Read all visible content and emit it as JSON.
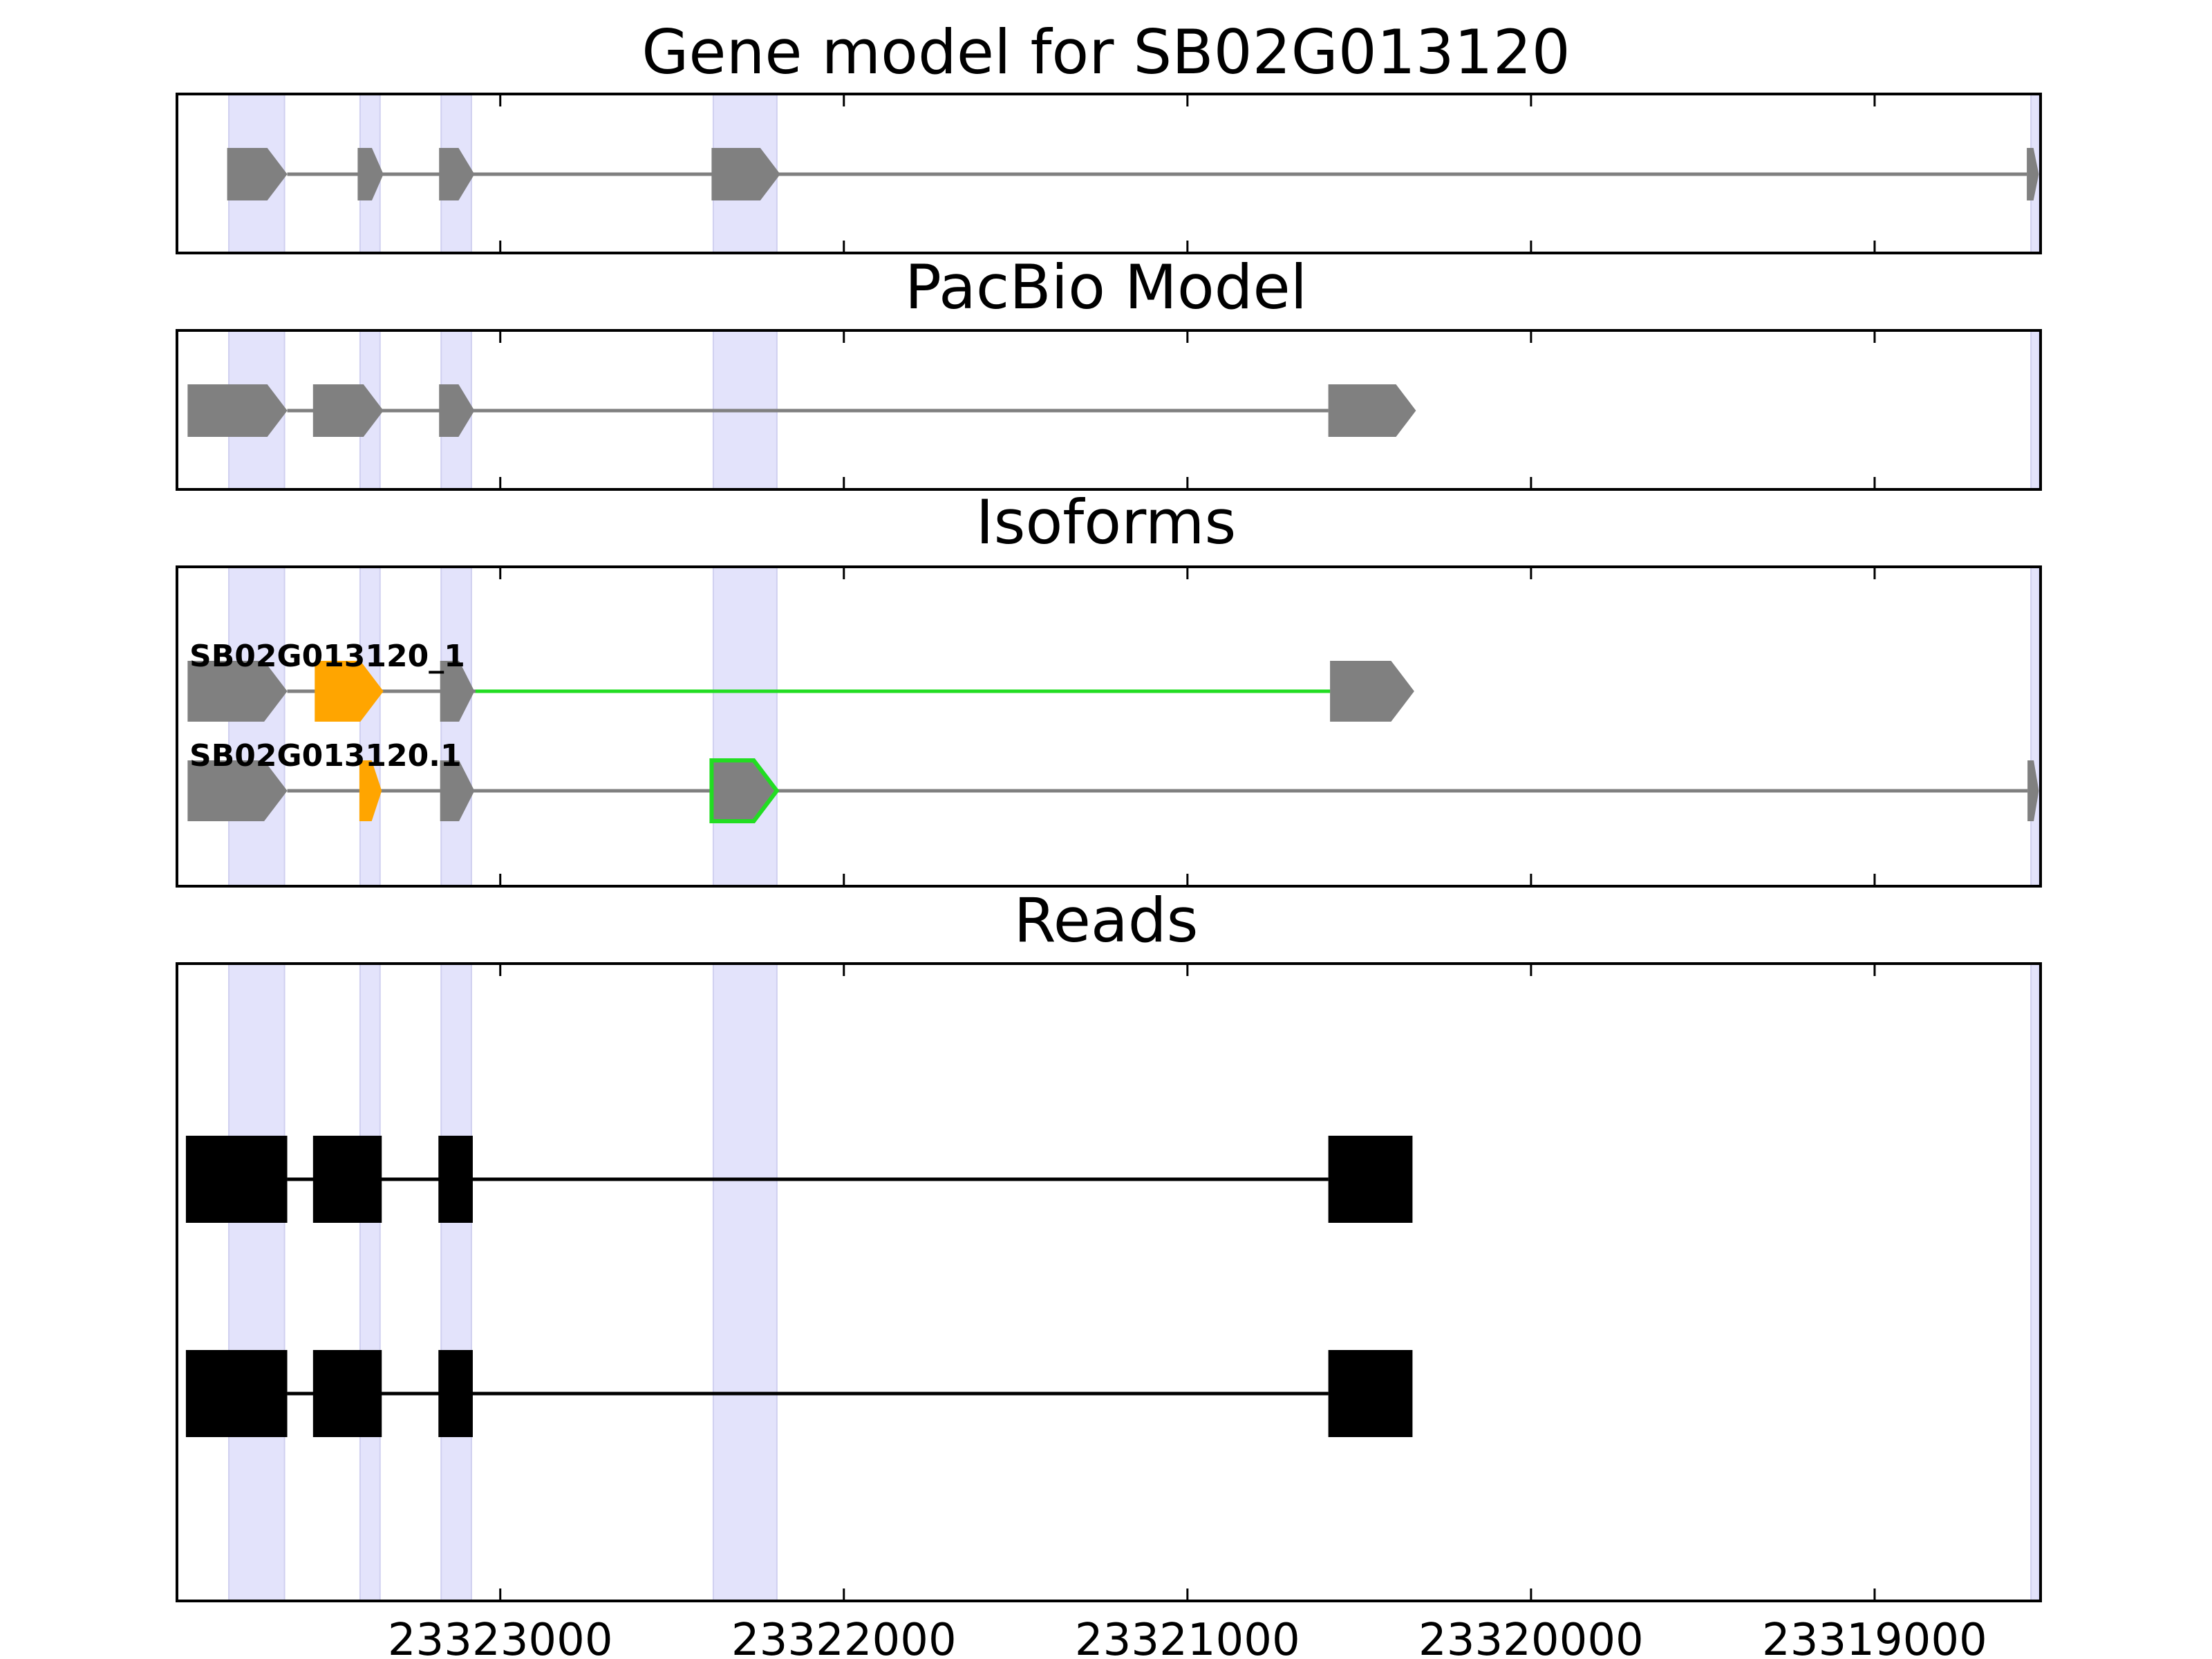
{
  "colors": {
    "background": "#ffffff",
    "shade": "#e3e3fb",
    "shade_edge": "#d0d0f0",
    "exon": "#808080",
    "intron": "#808080",
    "highlight_exon": "#ffa500",
    "novel_junction": "#22dd22",
    "read": "#000000"
  },
  "chart_data": {
    "type": "gene-structure",
    "x_axis": {
      "min": 23323941,
      "max": 23318517,
      "reversed": true,
      "ticks": [
        23323000,
        23322000,
        23321000,
        23320000,
        23319000
      ],
      "tick_labels": [
        "23323000",
        "23322000",
        "23321000",
        "23320000",
        "23319000"
      ]
    },
    "shaded_regions": [
      [
        23323790,
        23323628
      ],
      [
        23323408,
        23323350
      ],
      [
        23323172,
        23323084
      ],
      [
        23322380,
        23322195
      ],
      [
        23318545,
        23318522
      ]
    ],
    "panels": [
      {
        "title": "Gene model for SB02G013120",
        "tracks": [
          {
            "label": "",
            "intron_color": "intron",
            "exons": [
              {
                "start": 23323795,
                "end": 23323620,
                "fill": "exon",
                "edge": ""
              },
              {
                "start": 23323415,
                "end": 23323340,
                "fill": "exon",
                "edge": ""
              },
              {
                "start": 23323178,
                "end": 23323075,
                "fill": "exon",
                "edge": ""
              },
              {
                "start": 23322385,
                "end": 23322185,
                "fill": "exon",
                "edge": ""
              },
              {
                "start": 23318557,
                "end": 23318522,
                "fill": "exon",
                "edge": ""
              }
            ]
          }
        ]
      },
      {
        "title": "PacBio Model",
        "tracks": [
          {
            "label": "",
            "intron_color": "intron",
            "exons": [
              {
                "start": 23323910,
                "end": 23323620,
                "fill": "exon",
                "edge": ""
              },
              {
                "start": 23323545,
                "end": 23323340,
                "fill": "exon",
                "edge": ""
              },
              {
                "start": 23323178,
                "end": 23323075,
                "fill": "exon",
                "edge": ""
              },
              {
                "start": 23320590,
                "end": 23320335,
                "fill": "exon",
                "edge": ""
              }
            ]
          }
        ]
      },
      {
        "title": "Isoforms",
        "tracks": [
          {
            "label": "SB02G013120_1",
            "intron_color": "intron",
            "novel_intron": {
              "from": 23323072,
              "to": 23320585,
              "color": "novel_junction"
            },
            "exons": [
              {
                "start": 23323910,
                "end": 23323620,
                "fill": "exon",
                "edge": ""
              },
              {
                "start": 23323540,
                "end": 23323340,
                "fill": "highlight_exon",
                "edge": ""
              },
              {
                "start": 23323175,
                "end": 23323075,
                "fill": "exon",
                "edge": ""
              },
              {
                "start": 23320585,
                "end": 23320340,
                "fill": "exon",
                "edge": ""
              }
            ]
          },
          {
            "label": "SB02G013120.1",
            "intron_color": "intron",
            "exons": [
              {
                "start": 23323910,
                "end": 23323620,
                "fill": "exon",
                "edge": ""
              },
              {
                "start": 23323410,
                "end": 23323345,
                "fill": "highlight_exon",
                "edge": ""
              },
              {
                "start": 23323175,
                "end": 23323075,
                "fill": "exon",
                "edge": ""
              },
              {
                "start": 23322385,
                "end": 23322195,
                "fill": "exon",
                "edge": "novel_junction"
              },
              {
                "start": 23318555,
                "end": 23318522,
                "fill": "exon",
                "edge": ""
              }
            ]
          }
        ]
      },
      {
        "title": "Reads",
        "tracks": [
          {
            "label": "",
            "intron_color": "read",
            "blocks": [
              [
                23323915,
                23323620
              ],
              [
                23323545,
                23323345
              ],
              [
                23323180,
                23323080
              ],
              [
                23320590,
                23320345
              ]
            ]
          },
          {
            "label": "",
            "intron_color": "read",
            "blocks": [
              [
                23323915,
                23323620
              ],
              [
                23323545,
                23323345
              ],
              [
                23323180,
                23323080
              ],
              [
                23320590,
                23320345
              ]
            ]
          }
        ]
      }
    ]
  }
}
